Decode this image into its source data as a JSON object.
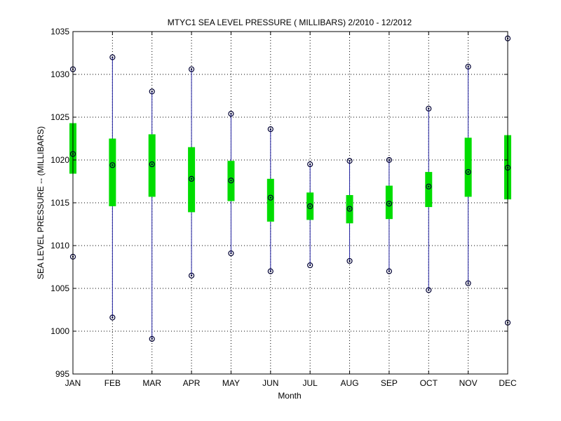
{
  "chart_data": {
    "type": "box",
    "title": "MTYC1  SEA LEVEL PRESSURE ( MILLIBARS) 2/2010 - 12/2012",
    "xlabel": "Month",
    "ylabel": "SEA LEVEL PRESSURE -- (MILLIBARS)",
    "ylim": [
      995,
      1035
    ],
    "yticks": [
      995,
      1000,
      1005,
      1010,
      1015,
      1020,
      1025,
      1030,
      1035
    ],
    "grid": true,
    "categories": [
      "JAN",
      "FEB",
      "MAR",
      "APR",
      "MAY",
      "JUN",
      "JUL",
      "AUG",
      "SEP",
      "OCT",
      "NOV",
      "DEC"
    ],
    "max": [
      1030.6,
      1032.0,
      1028.0,
      1030.6,
      1025.4,
      1023.6,
      1019.5,
      1019.9,
      1020.0,
      1026.0,
      1030.9,
      1034.2
    ],
    "q3": [
      1024.3,
      1022.5,
      1023.0,
      1021.5,
      1019.9,
      1017.8,
      1016.2,
      1015.9,
      1017.0,
      1018.6,
      1022.6,
      1022.9
    ],
    "median": [
      1020.7,
      1019.4,
      1019.5,
      1017.8,
      1017.6,
      1015.6,
      1014.6,
      1014.3,
      1014.9,
      1016.9,
      1018.6,
      1019.1
    ],
    "q1": [
      1018.4,
      1014.6,
      1015.7,
      1013.9,
      1015.2,
      1012.8,
      1013.0,
      1012.6,
      1013.1,
      1014.5,
      1015.7,
      1015.4
    ],
    "min": [
      1008.7,
      1001.6,
      999.1,
      1006.5,
      1009.1,
      1007.0,
      1007.7,
      1008.2,
      1007.0,
      1004.8,
      1005.6,
      1001.0
    ],
    "colors": {
      "whisker": "#2020a0",
      "box": "#00dd00",
      "marker": "#000033",
      "grid": "#000000"
    }
  }
}
